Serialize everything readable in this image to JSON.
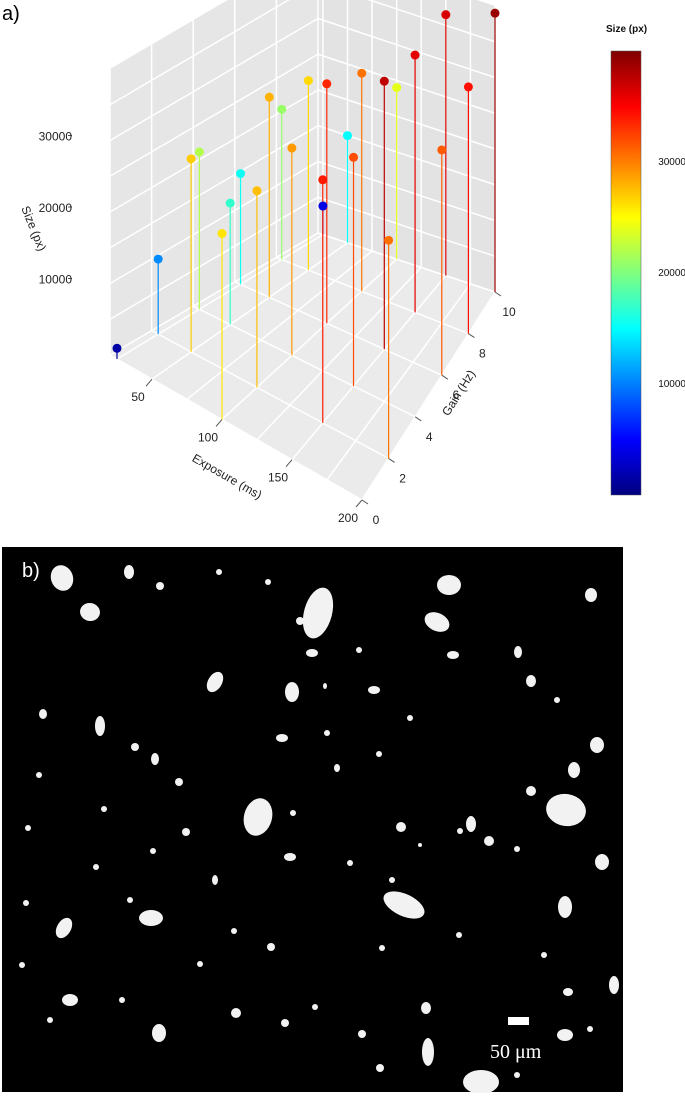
{
  "panels": {
    "a_label": "a)",
    "b_label": "b)"
  },
  "chart_data": {
    "type": "scatter3d",
    "axes": {
      "x": {
        "title": "Exposure (ms)",
        "ticks": [
          50,
          100,
          150,
          200
        ],
        "range": [
          20,
          200
        ]
      },
      "y": {
        "title": "Gain (Hz)",
        "ticks": [
          0,
          2,
          4,
          6,
          8,
          10
        ],
        "range": [
          0,
          10
        ]
      },
      "z": {
        "title": "Size (px)",
        "ticks": [
          10000,
          20000,
          30000
        ],
        "range": [
          0,
          40000
        ]
      }
    },
    "colorbar": {
      "title": "Size (px)",
      "ticks": [
        10000,
        20000,
        30000
      ],
      "range": [
        0,
        40000
      ],
      "colors": [
        "#00007f",
        "#0000ff",
        "#007fff",
        "#00ffff",
        "#7fff7f",
        "#ffff00",
        "#ff7f00",
        "#ff0000",
        "#7f0000"
      ]
    },
    "points": [
      {
        "x": 200,
        "y": 10,
        "z": 39000
      },
      {
        "x": 200,
        "y": 8,
        "z": 34500
      },
      {
        "x": 200,
        "y": 6,
        "z": 31500
      },
      {
        "x": 200,
        "y": 2,
        "z": 30500
      },
      {
        "x": 150,
        "y": 10,
        "z": 36500
      },
      {
        "x": 150,
        "y": 6,
        "z": 37500
      },
      {
        "x": 150,
        "y": 8,
        "z": 36000
      },
      {
        "x": 150,
        "y": 2,
        "z": 34000
      },
      {
        "x": 150,
        "y": 4,
        "z": 32000
      },
      {
        "x": 100,
        "y": 10,
        "z": 24000
      },
      {
        "x": 100,
        "y": 8,
        "z": 30500
      },
      {
        "x": 100,
        "y": 6,
        "z": 33500
      },
      {
        "x": 100,
        "y": 4,
        "z": 29000
      },
      {
        "x": 100,
        "y": 2,
        "z": 27500
      },
      {
        "x": 100,
        "y": 0,
        "z": 26000
      },
      {
        "x": 50,
        "y": 10,
        "z": 15000
      },
      {
        "x": 50,
        "y": 8,
        "z": 26500
      },
      {
        "x": 50,
        "y": 6,
        "z": 28000
      },
      {
        "x": 50,
        "y": 4,
        "z": 17000
      },
      {
        "x": 50,
        "y": 2,
        "z": 27000
      },
      {
        "x": 25,
        "y": 10,
        "z": 4000
      },
      {
        "x": 25,
        "y": 8,
        "z": 21000
      },
      {
        "x": 25,
        "y": 6,
        "z": 15500
      },
      {
        "x": 25,
        "y": 4,
        "z": 22000
      },
      {
        "x": 25,
        "y": 2,
        "z": 10500
      },
      {
        "x": 25,
        "y": 0,
        "z": 1500
      }
    ]
  },
  "micrograph": {
    "scale_bar_label": "50 μm"
  }
}
